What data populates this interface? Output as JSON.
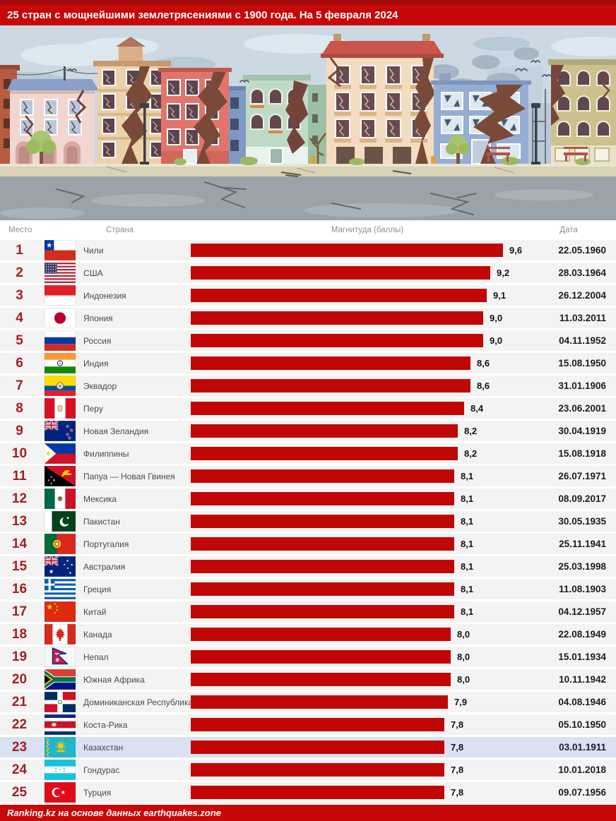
{
  "table": {
    "columns": {
      "rank": "Место",
      "country": "Страна",
      "magnitude": "Магнитуда (баллы)",
      "date": "Дата"
    }
  },
  "chart_data": {
    "type": "bar",
    "orientation": "horizontal",
    "title": "25 стран с мощнейшими землетрясениями с 1900 года. На 5 февраля 2024",
    "value_label": "Магнитуда (баллы)",
    "xlim": [
      0,
      9.6
    ],
    "highlighted_rank": 23,
    "rows": [
      {
        "rank": 1,
        "country": "Чили",
        "flag": "cl",
        "magnitude": 9.6,
        "magnitude_label": "9,6",
        "date": "22.05.1960"
      },
      {
        "rank": 2,
        "country": "США",
        "flag": "us",
        "magnitude": 9.2,
        "magnitude_label": "9,2",
        "date": "28.03.1964"
      },
      {
        "rank": 3,
        "country": "Индонезия",
        "flag": "id",
        "magnitude": 9.1,
        "magnitude_label": "9,1",
        "date": "26.12.2004"
      },
      {
        "rank": 4,
        "country": "Япония",
        "flag": "jp",
        "magnitude": 9.0,
        "magnitude_label": "9,0",
        "date": "11.03.2011"
      },
      {
        "rank": 5,
        "country": "Россия",
        "flag": "ru",
        "magnitude": 9.0,
        "magnitude_label": "9,0",
        "date": "04.11.1952"
      },
      {
        "rank": 6,
        "country": "Индия",
        "flag": "in",
        "magnitude": 8.6,
        "magnitude_label": "8,6",
        "date": "15.08.1950"
      },
      {
        "rank": 7,
        "country": "Эквадор",
        "flag": "ec",
        "magnitude": 8.6,
        "magnitude_label": "8,6",
        "date": "31.01.1906"
      },
      {
        "rank": 8,
        "country": "Перу",
        "flag": "pe",
        "magnitude": 8.4,
        "magnitude_label": "8,4",
        "date": "23.06.2001"
      },
      {
        "rank": 9,
        "country": "Новая Зеландия",
        "flag": "nz",
        "magnitude": 8.2,
        "magnitude_label": "8,2",
        "date": "30.04.1919"
      },
      {
        "rank": 10,
        "country": "Филиппины",
        "flag": "ph",
        "magnitude": 8.2,
        "magnitude_label": "8,2",
        "date": "15.08.1918"
      },
      {
        "rank": 11,
        "country": "Папуа — Новая Гвинея",
        "flag": "pg",
        "magnitude": 8.1,
        "magnitude_label": "8,1",
        "date": "26.07.1971"
      },
      {
        "rank": 12,
        "country": "Мексика",
        "flag": "mx",
        "magnitude": 8.1,
        "magnitude_label": "8,1",
        "date": "08.09.2017"
      },
      {
        "rank": 13,
        "country": "Пакистан",
        "flag": "pk",
        "magnitude": 8.1,
        "magnitude_label": "8,1",
        "date": "30.05.1935"
      },
      {
        "rank": 14,
        "country": "Португалия",
        "flag": "pt",
        "magnitude": 8.1,
        "magnitude_label": "8,1",
        "date": "25.11.1941"
      },
      {
        "rank": 15,
        "country": "Австралия",
        "flag": "au",
        "magnitude": 8.1,
        "magnitude_label": "8,1",
        "date": "25.03.1998"
      },
      {
        "rank": 16,
        "country": "Греция",
        "flag": "gr",
        "magnitude": 8.1,
        "magnitude_label": "8,1",
        "date": "11.08.1903"
      },
      {
        "rank": 17,
        "country": "Китай",
        "flag": "cn",
        "magnitude": 8.1,
        "magnitude_label": "8,1",
        "date": "04.12.1957"
      },
      {
        "rank": 18,
        "country": "Канада",
        "flag": "ca",
        "magnitude": 8.0,
        "magnitude_label": "8,0",
        "date": "22.08.1949"
      },
      {
        "rank": 19,
        "country": "Непал",
        "flag": "np",
        "magnitude": 8.0,
        "magnitude_label": "8,0",
        "date": "15.01.1934"
      },
      {
        "rank": 20,
        "country": "Южная Африка",
        "flag": "za",
        "magnitude": 8.0,
        "magnitude_label": "8,0",
        "date": "10.11.1942"
      },
      {
        "rank": 21,
        "country": "Доминиканская Республика",
        "flag": "do",
        "magnitude": 7.9,
        "magnitude_label": "7,9",
        "date": "04.08.1946"
      },
      {
        "rank": 22,
        "country": "Коста-Рика",
        "flag": "cr",
        "magnitude": 7.8,
        "magnitude_label": "7,8",
        "date": "05.10.1950"
      },
      {
        "rank": 23,
        "country": "Казахстан",
        "flag": "kz",
        "magnitude": 7.8,
        "magnitude_label": "7,8",
        "date": "03.01.1911"
      },
      {
        "rank": 24,
        "country": "Гондурас",
        "flag": "hn",
        "magnitude": 7.8,
        "magnitude_label": "7,8",
        "date": "10.01.2018"
      },
      {
        "rank": 25,
        "country": "Турция",
        "flag": "tr",
        "magnitude": 7.8,
        "magnitude_label": "7,8",
        "date": "09.07.1956"
      }
    ]
  },
  "footer": {
    "credit": "Ranking.kz на основе данных earthquakes.zone"
  },
  "colors": {
    "accent_red": "#c60808",
    "bar_red": "#c10606",
    "rank_red": "#a41e24",
    "highlight_row": "#d9e1f2",
    "row_bg": "#f3f3f3"
  }
}
